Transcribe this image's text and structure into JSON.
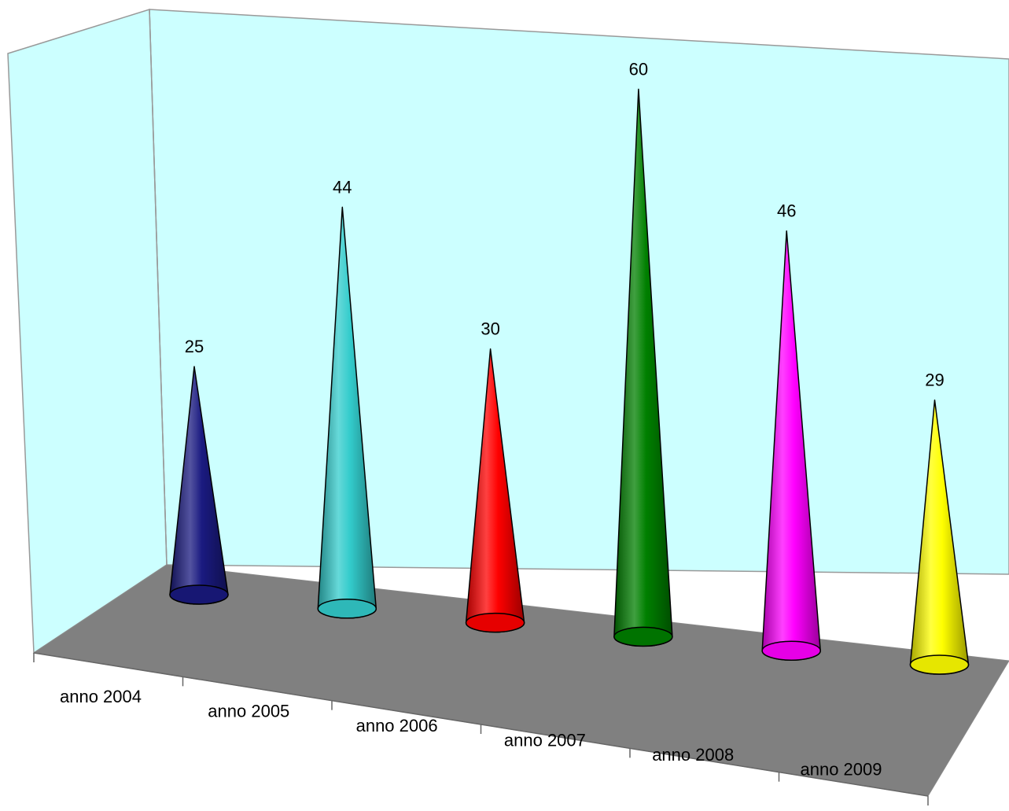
{
  "chart_data": {
    "type": "bar",
    "style": "3d-cone",
    "categories": [
      "anno 2004",
      "anno 2005",
      "anno 2006",
      "anno 2007",
      "anno 2008",
      "anno 2009"
    ],
    "values": [
      25,
      44,
      30,
      60,
      46,
      29
    ],
    "colors": [
      "#1a1a80",
      "#33cccc",
      "#ff0000",
      "#008000",
      "#ff00ff",
      "#ffff00"
    ],
    "title": "",
    "xlabel": "",
    "ylabel": "",
    "ylim": [
      0,
      60
    ],
    "data_labels": true,
    "grid": false,
    "legend": "none",
    "wall_color": "#ccffff",
    "floor_color": "#808080"
  }
}
